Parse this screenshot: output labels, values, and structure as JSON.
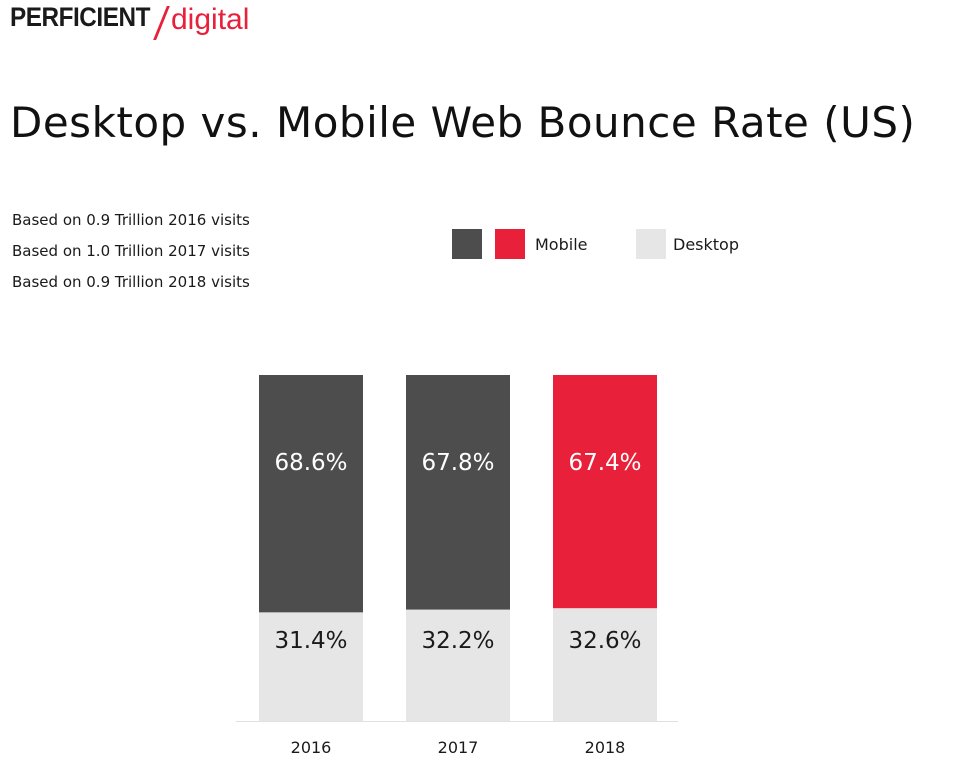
{
  "logo": {
    "main": "PERFICIENT",
    "sub": "digital"
  },
  "title": "Desktop vs. Mobile Web Bounce Rate (US)",
  "notes": [
    "Based on 0.9 Trillion 2016 visits",
    "Based on 1.0 Trillion 2017 visits",
    "Based on 0.9 Trillion 2018 visits"
  ],
  "legend": {
    "mobile": "Mobile",
    "desktop": "Desktop"
  },
  "colors": {
    "mobile_dark": "#4d4d4d",
    "mobile_accent": "#e8203a",
    "desktop": "#e6e6e6",
    "text_on_dark": "#ffffff",
    "text_on_light": "#1a1a1a",
    "axis": "#e0e0e0"
  },
  "chart_data": {
    "type": "bar",
    "stacked": true,
    "categories": [
      "2016",
      "2017",
      "2018"
    ],
    "series": [
      {
        "name": "Desktop",
        "values": [
          31.4,
          32.2,
          32.6
        ],
        "labels": [
          "31.4%",
          "32.2%",
          "32.6%"
        ]
      },
      {
        "name": "Mobile",
        "values": [
          68.6,
          67.8,
          67.4
        ],
        "labels": [
          "68.6%",
          "67.8%",
          "67.4%"
        ]
      }
    ],
    "ylim": [
      0,
      100
    ],
    "grid": false,
    "legend_position": "top-center",
    "xlabel": "",
    "ylabel": ""
  }
}
